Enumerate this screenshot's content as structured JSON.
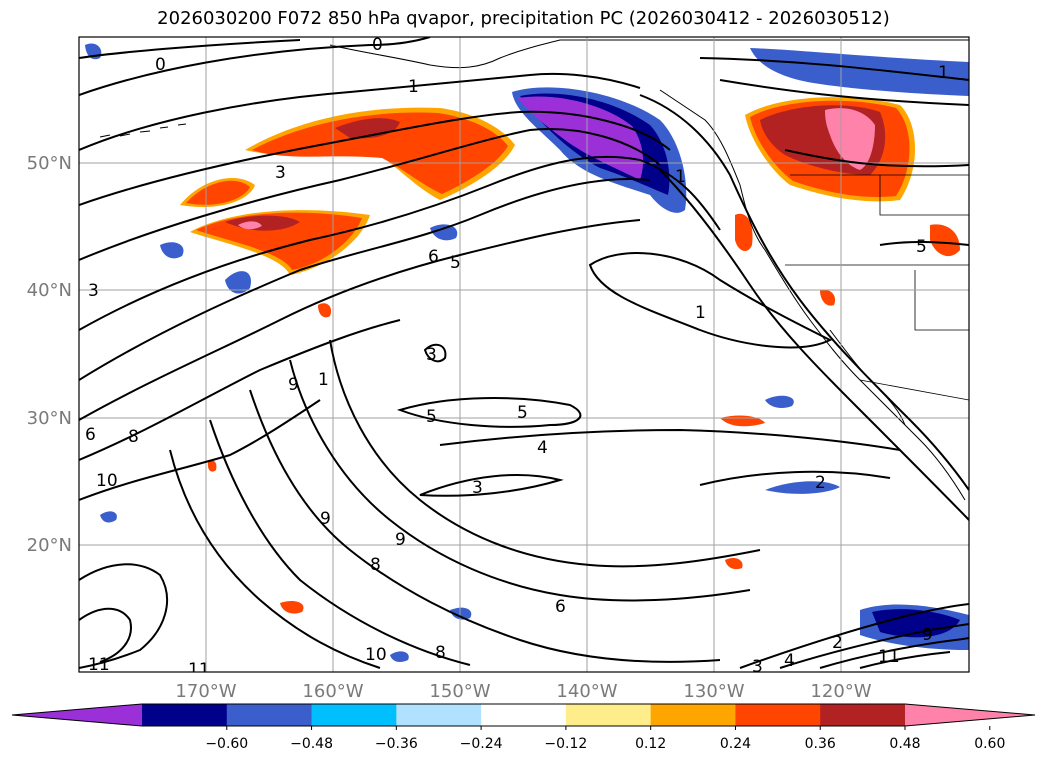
{
  "title": "2026030200 F072 850 hPa qvapor, precipitation PC (2026030412 - 2026030512)",
  "lat_labels": [
    "50°N",
    "40°N",
    "30°N",
    "20°N"
  ],
  "lon_labels": [
    "170°W",
    "160°W",
    "150°W",
    "140°W",
    "130°W",
    "120°W"
  ],
  "contour_labels": [
    "0",
    "0",
    "1",
    "1",
    "1",
    "3",
    "3",
    "6",
    "5",
    "3",
    "9",
    "1",
    "1",
    "5",
    "5",
    "4",
    "3",
    "2",
    "6",
    "8",
    "10",
    "9",
    "9",
    "8",
    "8",
    "6",
    "10",
    "11",
    "11",
    "5",
    "2",
    "3",
    "4",
    "11",
    "9"
  ],
  "colorbar": {
    "tick_labels": [
      "−0.60",
      "−0.48",
      "−0.36",
      "−0.24",
      "−0.12",
      "0.12",
      "0.24",
      "0.36",
      "0.48",
      "0.60"
    ],
    "colors": [
      "#9b30d9",
      "#00008b",
      "#3a5fcd",
      "#00bfff",
      "#b0e2ff",
      "#ffffff",
      "#ffec8b",
      "#ffa500",
      "#ff4500",
      "#b22222",
      "#ff82ab"
    ],
    "extend": "both"
  },
  "colors": {
    "purple": "#9b30d9",
    "navy": "#00008b",
    "royal": "#3a5fcd",
    "sky": "#00bfff",
    "light_blue": "#b0e2ff",
    "yellow": "#ffec8b",
    "orange": "#ffa500",
    "red_orange": "#ff4500",
    "firebrick": "#b22222",
    "pink": "#ff82ab",
    "grid": "#a0a0a0",
    "axis_label": "#7a7a7a"
  }
}
